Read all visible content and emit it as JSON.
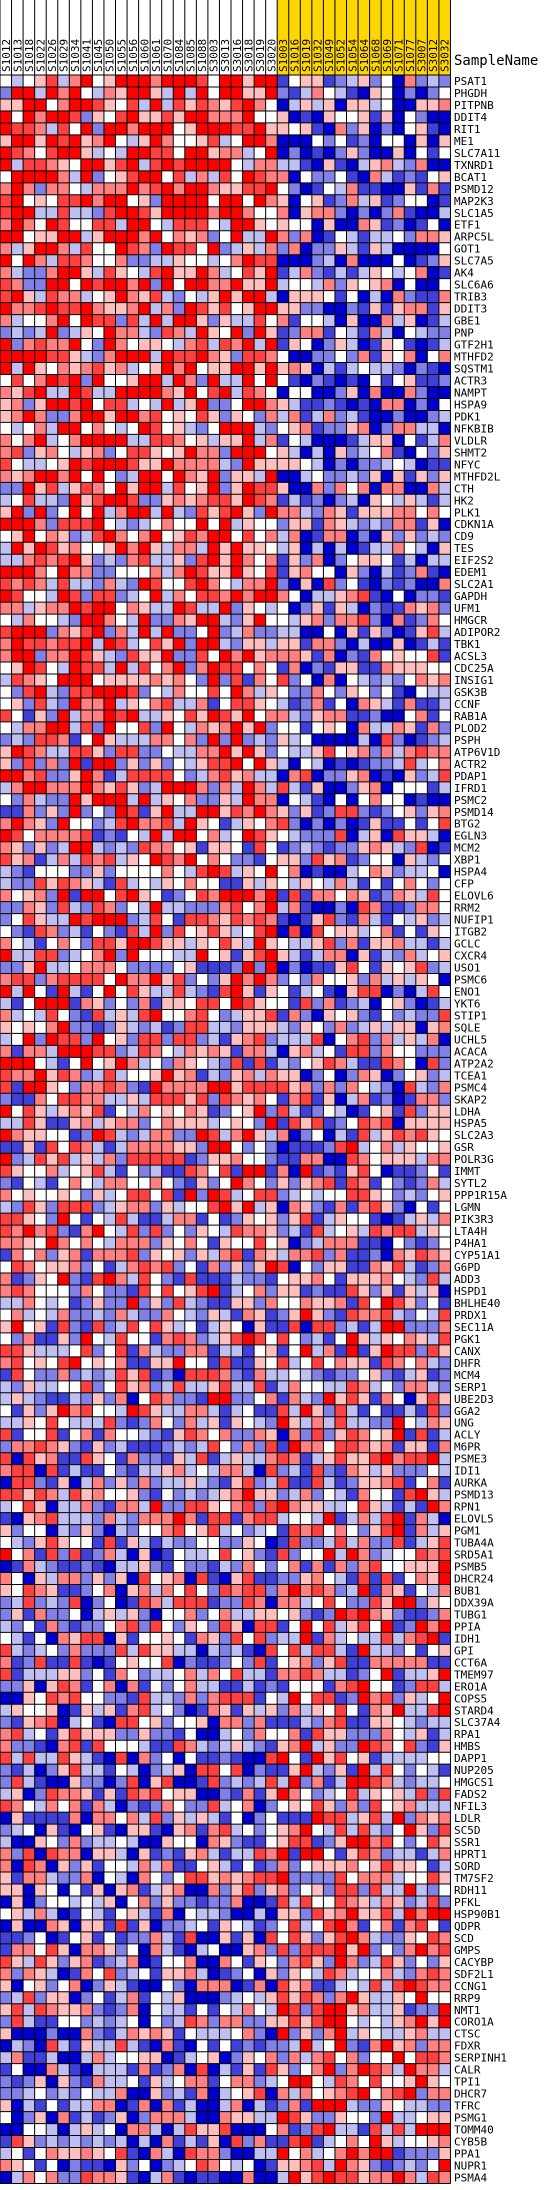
{
  "chart_data": {
    "type": "heatmap",
    "header_label": "SampleName",
    "columns": [
      "S1012",
      "S1013",
      "S1018",
      "S1022",
      "S1026",
      "S1029",
      "S1034",
      "S1041",
      "S1045",
      "S1050",
      "S1055",
      "S1056",
      "S1060",
      "S1061",
      "S1070",
      "S1084",
      "S1085",
      "S1088",
      "S3003",
      "S3013",
      "S3016",
      "S3018",
      "S3019",
      "S3020",
      "S1003",
      "S1016",
      "S1019",
      "S1032",
      "S1049",
      "S1052",
      "S1054",
      "S1064",
      "S1068",
      "S1069",
      "S1071",
      "S1077",
      "S3007",
      "S3012",
      "S3032"
    ],
    "column_groups": [
      {
        "count": 24,
        "color": "#ffffff"
      },
      {
        "count": 15,
        "color": "#ffd700"
      }
    ],
    "genes": [
      "PSAT1",
      "PHGDH",
      "PITPNB",
      "DDIT4",
      "RIT1",
      "ME1",
      "SLC7A11",
      "TXNRD1",
      "BCAT1",
      "PSMD12",
      "MAP2K3",
      "SLC1A5",
      "ETF1",
      "ARPC5L",
      "GOT1",
      "SLC7A5",
      "AK4",
      "SLC6A6",
      "TRIB3",
      "DDIT3",
      "GBE1",
      "PNP",
      "GTF2H1",
      "MTHFD2",
      "SQSTM1",
      "ACTR3",
      "NAMPT",
      "HSPA9",
      "PDK1",
      "NFKBIB",
      "VLDLR",
      "SHMT2",
      "NFYC",
      "MTHFD2L",
      "CTH",
      "HK2",
      "PLK1",
      "CDKN1A",
      "CD9",
      "TES",
      "EIF2S2",
      "EDEM1",
      "SLC2A1",
      "GAPDH",
      "UFM1",
      "HMGCR",
      "ADIPOR2",
      "TBK1",
      "ACSL3",
      "CDC25A",
      "INSIG1",
      "GSK3B",
      "CCNF",
      "RAB1A",
      "PLOD2",
      "PSPH",
      "ATP6V1D",
      "ACTR2",
      "PDAP1",
      "IFRD1",
      "PSMC2",
      "PSMD14",
      "BTG2",
      "EGLN3",
      "MCM2",
      "XBP1",
      "HSPA4",
      "CFP",
      "ELOVL6",
      "RRM2",
      "NUFIP1",
      "ITGB2",
      "GCLC",
      "CXCR4",
      "USO1",
      "PSMC6",
      "ENO1",
      "YKT6",
      "STIP1",
      "SQLE",
      "UCHL5",
      "ACACA",
      "ATP2A2",
      "TCEA1",
      "PSMC4",
      "SKAP2",
      "LDHA",
      "HSPA5",
      "SLC2A3",
      "GSR",
      "POLR3G",
      "IMMT",
      "SYTL2",
      "PPP1R15A",
      "LGMN",
      "PIK3R3",
      "LTA4H",
      "P4HA1",
      "CYP51A1",
      "G6PD",
      "ADD3",
      "HSPD1",
      "BHLHE40",
      "PRDX1",
      "SEC11A",
      "PGK1",
      "CANX",
      "DHFR",
      "MCM4",
      "SERP1",
      "UBE2D3",
      "GGA2",
      "UNG",
      "ACLY",
      "M6PR",
      "PSME3",
      "IDI1",
      "AURKA",
      "PSMD13",
      "RPN1",
      "ELOVL5",
      "PGM1",
      "TUBA4A",
      "SRD5A1",
      "PSMB5",
      "DHCR24",
      "BUB1",
      "DDX39A",
      "TUBG1",
      "PPIA",
      "IDH1",
      "GPI",
      "CCT6A",
      "TMEM97",
      "ERO1A",
      "COPS5",
      "STARD4",
      "SLC37A4",
      "RPA1",
      "HMBS",
      "DAPP1",
      "NUP205",
      "HMGCS1",
      "FADS2",
      "NFIL3",
      "LDLR",
      "SC5D",
      "SSR1",
      "HPRT1",
      "SORD",
      "TM7SF2",
      "RDH11",
      "PFKL",
      "HSP90B1",
      "QDPR",
      "SCD",
      "GMPS",
      "CACYBP",
      "SDF2L1",
      "CCNG1",
      "RRP9",
      "NMT1",
      "CORO1A",
      "CTSC",
      "FDXR",
      "SERPINH1",
      "CALR",
      "TPI1",
      "DHCR7",
      "TFRC",
      "PSMG1",
      "TOMM40",
      "CYB5B",
      "PPA1",
      "NUPR1",
      "PSMA4"
    ],
    "color_scale": {
      "low": "#0000cc",
      "mid": "#ffffff",
      "high": "#ff0000"
    }
  }
}
